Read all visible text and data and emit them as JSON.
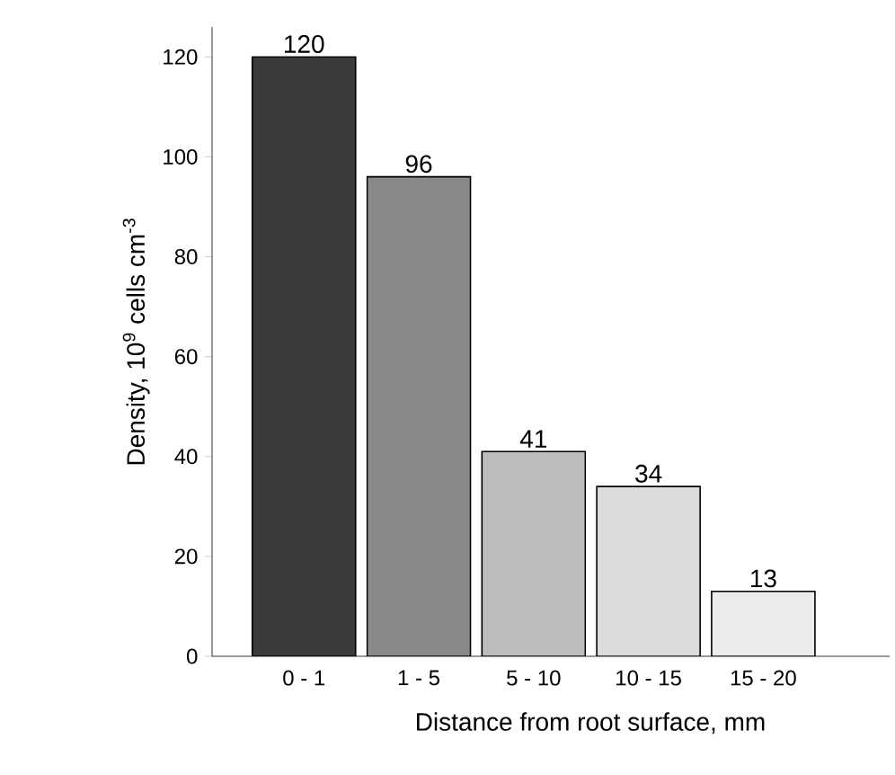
{
  "chart_data": {
    "type": "bar",
    "xlabel": "Distance from root surface, mm",
    "ylabel": "Density, 10$^{9}$ cells cm$^{-3}$",
    "categories": [
      "0 - 1",
      "1 - 5",
      "5 - 10",
      "10 - 15",
      "15 - 20"
    ],
    "values": [
      120,
      96,
      41,
      34,
      13
    ],
    "colors": [
      "#3a3a3a",
      "#8a8a8a",
      "#bdbdbd",
      "#dcdcdc",
      "#ececec"
    ],
    "ylim": [
      0,
      126
    ],
    "yticks": [
      0,
      20,
      40,
      60,
      80,
      100,
      120
    ],
    "data_labels": true
  }
}
